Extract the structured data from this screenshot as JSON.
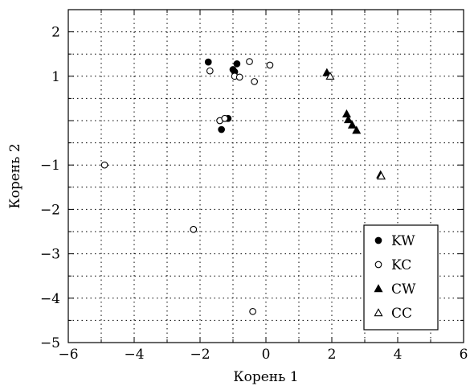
{
  "chart_data": {
    "type": "scatter",
    "xlabel": "Корень 1",
    "ylabel": "Корень 2",
    "xlim": [
      -6,
      6
    ],
    "ylim": [
      -5,
      2.5
    ],
    "xticks": [
      -6,
      -4,
      -2,
      0,
      2,
      4,
      6
    ],
    "xtick_labels": [
      "−6",
      "−4",
      "−2",
      "0",
      "2",
      "4",
      "6"
    ],
    "yticks": [
      -5,
      -4,
      -3,
      -2,
      -1,
      0,
      1,
      2
    ],
    "ytick_labels": [
      "−5",
      "−4",
      "−3",
      "−2",
      "−1",
      "",
      "1",
      "2"
    ],
    "x_minor_step": 1,
    "y_minor_step": 0.5,
    "grid": true,
    "legend_position": "bottom-right",
    "series": [
      {
        "name": "KW",
        "marker": "filled-circle",
        "points": [
          [
            -1.75,
            1.32
          ],
          [
            -1.0,
            1.15
          ],
          [
            -0.95,
            1.1
          ],
          [
            -0.88,
            1.28
          ],
          [
            -1.15,
            0.05
          ],
          [
            -1.35,
            -0.2
          ]
        ]
      },
      {
        "name": "KC",
        "marker": "open-circle",
        "points": [
          [
            -4.9,
            -1.0
          ],
          [
            -2.2,
            -2.45
          ],
          [
            -1.7,
            1.12
          ],
          [
            -1.4,
            0.0
          ],
          [
            -1.25,
            0.05
          ],
          [
            -0.95,
            1.0
          ],
          [
            -0.8,
            0.98
          ],
          [
            -0.5,
            1.33
          ],
          [
            -0.35,
            0.88
          ],
          [
            0.12,
            1.25
          ],
          [
            -0.4,
            -4.3
          ]
        ]
      },
      {
        "name": "CW",
        "marker": "filled-triangle",
        "points": [
          [
            1.85,
            1.08
          ],
          [
            2.45,
            0.15
          ],
          [
            2.5,
            0.02
          ],
          [
            2.62,
            -0.1
          ],
          [
            2.75,
            -0.22
          ],
          [
            3.48,
            -1.22
          ]
        ]
      },
      {
        "name": "CC",
        "marker": "open-triangle",
        "points": [
          [
            1.95,
            1.0
          ],
          [
            3.5,
            -1.25
          ]
        ]
      }
    ]
  }
}
